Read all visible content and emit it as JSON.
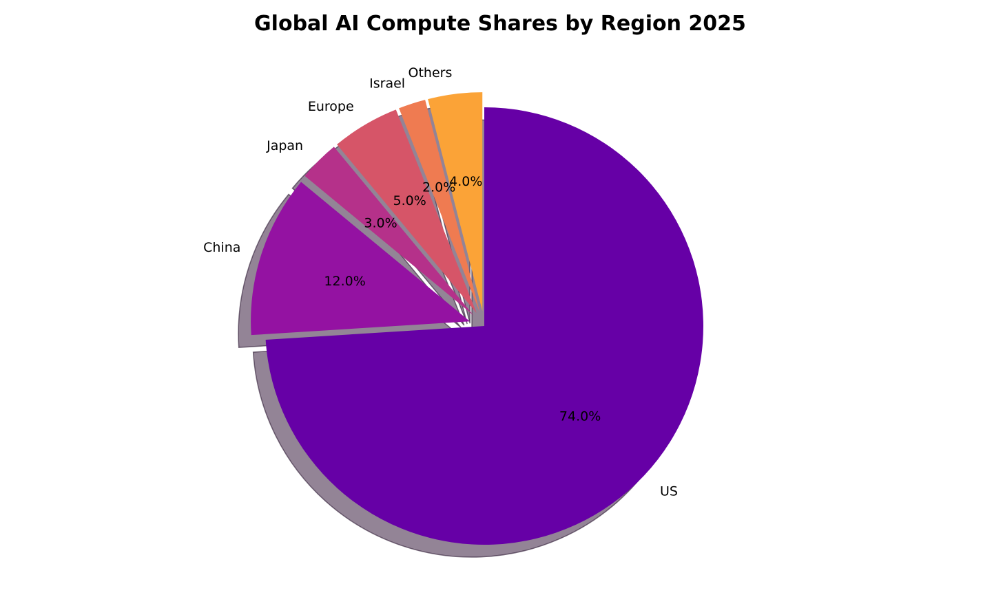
{
  "chart_data": {
    "type": "pie",
    "title": "Global AI Compute Shares by Region 2025",
    "start_angle_deg": 90,
    "direction": "clockwise",
    "shadow": true,
    "explode": true,
    "slices": [
      {
        "label": "US",
        "value": 74.0,
        "pct_label": "74.0%",
        "color": "#6600a6",
        "exploded": false
      },
      {
        "label": "China",
        "value": 12.0,
        "pct_label": "12.0%",
        "color": "#9412a2",
        "exploded": true
      },
      {
        "label": "Japan",
        "value": 3.0,
        "pct_label": "3.0%",
        "color": "#b5318a",
        "exploded": true
      },
      {
        "label": "Europe",
        "value": 5.0,
        "pct_label": "5.0%",
        "color": "#d65568",
        "exploded": true
      },
      {
        "label": "Israel",
        "value": 2.0,
        "pct_label": "2.0%",
        "color": "#ef7b51",
        "exploded": true
      },
      {
        "label": "Others",
        "value": 4.0,
        "pct_label": "4.0%",
        "color": "#fba337",
        "exploded": true
      }
    ]
  }
}
